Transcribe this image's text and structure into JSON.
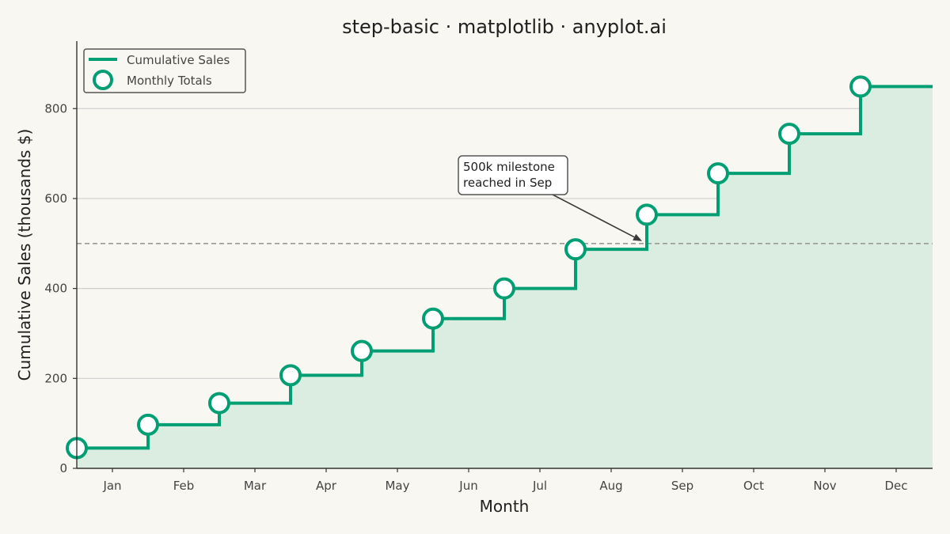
{
  "chart_data": {
    "type": "line",
    "title": "step-basic · matplotlib · anyplot.ai",
    "xlabel": "Month",
    "ylabel": "Cumulative Sales (thousands $)",
    "categories": [
      "Jan",
      "Feb",
      "Mar",
      "Apr",
      "May",
      "Jun",
      "Jul",
      "Aug",
      "Sep",
      "Oct",
      "Nov",
      "Dec"
    ],
    "series": [
      {
        "name": "Cumulative Sales",
        "style": "step-post",
        "color": "#009e73",
        "values": [
          45,
          97,
          145,
          207,
          261,
          333,
          400,
          487,
          564,
          656,
          744,
          849
        ]
      }
    ],
    "markers_legend": "Monthly Totals",
    "ylim": [
      0,
      950
    ],
    "yticks": [
      0,
      200,
      400,
      600,
      800
    ],
    "grid": "horizontal",
    "legend_position": "top-left",
    "fill_under": true,
    "reference_line": {
      "y": 500,
      "style": "dashed",
      "color": "#999999"
    },
    "annotation": {
      "lines": [
        "500k milestone",
        "reached in Sep"
      ],
      "target_category": "Sep",
      "target_value": 500
    }
  },
  "colors": {
    "background": "#f9f7f1",
    "series": "#009e73",
    "fill": "#dbede1",
    "grid": "#cfcfcf",
    "axis": "#333333"
  }
}
